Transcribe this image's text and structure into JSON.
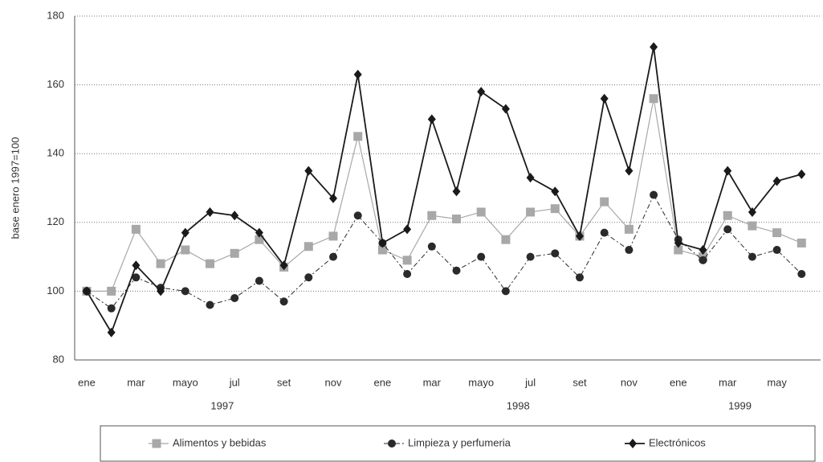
{
  "chart_data": {
    "type": "line",
    "y_label": "base enero 1997=100",
    "categories": [
      "ene",
      null,
      "mar",
      null,
      "mayo",
      null,
      "jul",
      null,
      "set",
      null,
      "nov",
      null,
      "ene",
      null,
      "mar",
      null,
      "mayo",
      null,
      "jul",
      null,
      "set",
      null,
      "nov",
      null,
      "ene",
      null,
      "mar",
      null,
      "may",
      null
    ],
    "year_labels": [
      "1997",
      "1998",
      "1999"
    ],
    "series": [
      {
        "name": "Alimentos y bebidas",
        "color": "#a8a8a8",
        "marker": "square",
        "values": [
          100,
          100,
          118,
          108,
          112,
          108,
          111,
          115,
          107,
          113,
          116,
          145,
          112,
          109,
          122,
          121,
          123,
          115,
          123,
          124,
          116,
          126,
          118,
          156,
          112,
          110,
          122,
          119,
          117,
          114
        ]
      },
      {
        "name": "Limpieza y perfumeria",
        "color": "#2a2a2a",
        "marker": "circle",
        "values": [
          100,
          95,
          104,
          101,
          100,
          96,
          98,
          103,
          97,
          104,
          110,
          122,
          114,
          105,
          113,
          106,
          110,
          100,
          110,
          111,
          104,
          117,
          112,
          128,
          115,
          109,
          118,
          110,
          112,
          105
        ]
      },
      {
        "name": "Electrónicos",
        "color": "#1a1a1a",
        "marker": "diamond",
        "values": [
          100,
          88,
          107.5,
          100,
          117,
          123,
          122,
          117,
          107.5,
          135,
          127,
          163,
          114,
          118,
          150,
          129,
          158,
          153,
          133,
          129,
          116,
          156,
          135,
          171,
          114,
          112,
          135,
          123,
          132,
          134
        ]
      }
    ],
    "ylim": [
      80,
      180
    ],
    "yticks": [
      80,
      100,
      120,
      140,
      160,
      180
    ],
    "grid": true
  }
}
